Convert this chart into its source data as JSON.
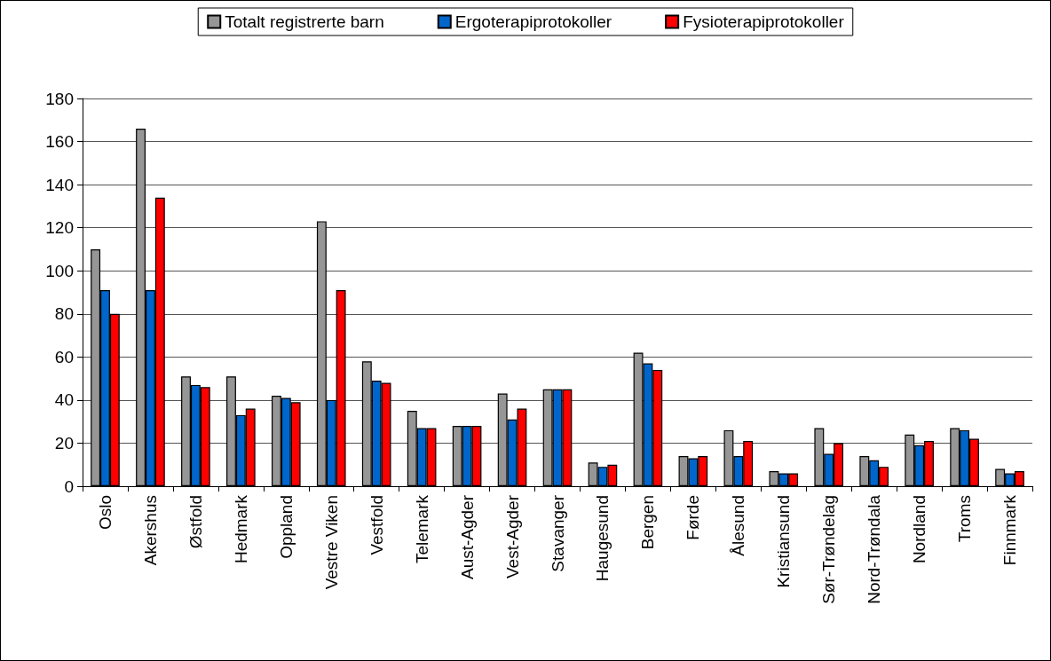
{
  "chart_data": {
    "type": "bar",
    "categories": [
      "Oslo",
      "Akershus",
      "Østfold",
      "Hedmark",
      "Oppland",
      "Vestre Viken",
      "Vestfold",
      "Telemark",
      "Aust-Agder",
      "Vest-Agder",
      "Stavanger",
      "Haugesund",
      "Bergen",
      "Førde",
      "Ålesund",
      "Kristiansund",
      "Sør-Trøndelag",
      "Nord-Trøndala",
      "Nordland",
      "Troms",
      "Finnmark"
    ],
    "series": [
      {
        "name": "Totalt registrerte barn",
        "color": "#969696",
        "values": [
          110,
          166,
          51,
          51,
          42,
          123,
          58,
          35,
          28,
          43,
          45,
          11,
          62,
          14,
          26,
          7,
          27,
          14,
          24,
          27,
          8
        ]
      },
      {
        "name": "Ergoterapiprotokoller",
        "color": "#0066cc",
        "values": [
          91,
          91,
          47,
          33,
          41,
          40,
          49,
          27,
          28,
          31,
          45,
          9,
          57,
          13,
          14,
          6,
          15,
          12,
          19,
          26,
          6
        ]
      },
      {
        "name": "Fysioterapiprotokoller",
        "color": "#ff0000",
        "values": [
          80,
          134,
          46,
          36,
          39,
          91,
          48,
          27,
          28,
          36,
          45,
          10,
          54,
          14,
          21,
          6,
          20,
          9,
          21,
          22,
          7
        ]
      }
    ],
    "ylim": [
      0,
      180
    ],
    "yticks": [
      0,
      20,
      40,
      60,
      80,
      100,
      120,
      140,
      160,
      180
    ],
    "grid": "y",
    "legend": "top"
  }
}
